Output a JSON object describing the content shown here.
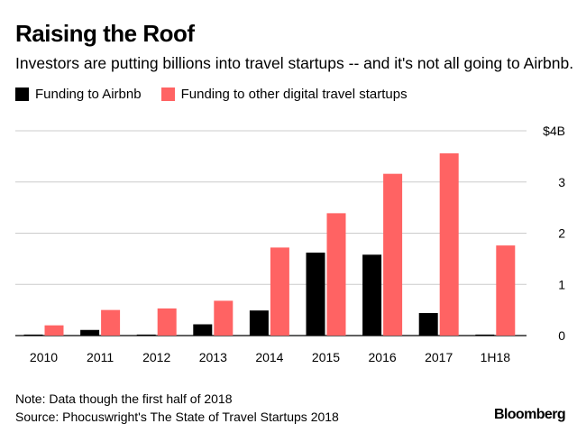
{
  "chart_data": {
    "type": "bar",
    "title": "Raising the Roof",
    "subtitle": "Investors are putting billions into travel startups -- and it's not all going to Airbnb.",
    "categories": [
      "2010",
      "2011",
      "2012",
      "2013",
      "2014",
      "2015",
      "2016",
      "2017",
      "1H18"
    ],
    "series": [
      {
        "name": "Funding to Airbnb",
        "color": "#000000",
        "values": [
          0.02,
          0.11,
          0.02,
          0.22,
          0.49,
          1.62,
          1.58,
          0.44,
          0.02
        ]
      },
      {
        "name": "Funding to other digital travel startups",
        "color": "#ff6363",
        "values": [
          0.2,
          0.5,
          0.53,
          0.68,
          1.72,
          2.39,
          3.16,
          3.56,
          1.76
        ]
      }
    ],
    "ylim": [
      0,
      4
    ],
    "yticks": [
      {
        "value": 0,
        "label": "0"
      },
      {
        "value": 1,
        "label": "1"
      },
      {
        "value": 2,
        "label": "2"
      },
      {
        "value": 3,
        "label": "3"
      },
      {
        "value": 4,
        "label": "$4B"
      }
    ],
    "xlabel": "",
    "ylabel": "",
    "grid": true,
    "legend_position": "top-left"
  },
  "footer": {
    "note": "Note: Data though the first half of 2018",
    "source": "Source: Phocuswright's The State of Travel Startups 2018",
    "brand": "Bloomberg"
  },
  "colors": {
    "airbnb": "#000000",
    "other": "#ff6363",
    "grid": "#cccccc"
  }
}
